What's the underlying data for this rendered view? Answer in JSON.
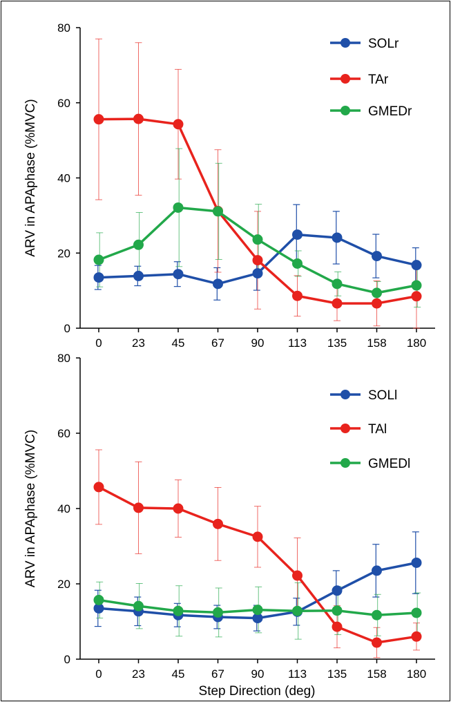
{
  "chart_data": [
    {
      "type": "line",
      "title": "",
      "xlabel": "",
      "ylabel": "ARV in APAphase (%MVC)",
      "ylim": [
        0,
        80
      ],
      "yticks": [
        0,
        20,
        40,
        60,
        80
      ],
      "x": [
        0,
        23,
        45,
        67,
        90,
        113,
        135,
        158,
        180
      ],
      "x_labels": [
        "0",
        "23",
        "45",
        "67",
        "90",
        "113",
        "135",
        "158",
        "180"
      ],
      "legend_position": "top-right",
      "series": [
        {
          "name": "SOLr",
          "color": "#1f4fa8",
          "values": [
            13.5,
            13.9,
            14.4,
            11.8,
            14.6,
            24.9,
            24.1,
            19.2,
            16.8
          ],
          "errors": [
            3.2,
            2.6,
            3.3,
            4.3,
            4.5,
            8.0,
            7.0,
            5.8,
            4.6
          ]
        },
        {
          "name": "TAr",
          "color": "#e8231d",
          "values": [
            55.6,
            55.7,
            54.3,
            31.2,
            18.1,
            8.6,
            6.6,
            6.6,
            8.5
          ],
          "errors": [
            21.4,
            20.3,
            14.6,
            16.3,
            13.0,
            5.4,
            4.6,
            6.0,
            8.5
          ]
        },
        {
          "name": "GMEDr",
          "color": "#22a84a",
          "values": [
            18.2,
            22.2,
            32.1,
            31.1,
            23.6,
            17.2,
            11.8,
            9.4,
            11.4
          ],
          "errors": [
            7.2,
            8.6,
            15.7,
            12.8,
            9.4,
            3.4,
            3.2,
            3.0,
            5.8
          ]
        }
      ]
    },
    {
      "type": "line",
      "title": "",
      "xlabel": "Step Direction (deg)",
      "ylabel": "ARV in APAphase (%MVC)",
      "ylim": [
        0,
        80
      ],
      "yticks": [
        0,
        20,
        40,
        60,
        80
      ],
      "x": [
        0,
        23,
        45,
        67,
        90,
        113,
        135,
        158,
        180
      ],
      "x_labels": [
        "0",
        "23",
        "45",
        "67",
        "90",
        "113",
        "135",
        "158",
        "180"
      ],
      "legend_position": "top-right",
      "series": [
        {
          "name": "SOLl",
          "color": "#1f4fa8",
          "values": [
            13.5,
            12.7,
            11.7,
            11.2,
            10.9,
            12.6,
            18.2,
            23.5,
            25.6
          ],
          "errors": [
            4.8,
            3.8,
            3.1,
            3.1,
            3.4,
            3.6,
            5.3,
            7.0,
            8.2
          ]
        },
        {
          "name": "TAl",
          "color": "#e8231d",
          "values": [
            45.7,
            40.2,
            40.0,
            35.9,
            32.5,
            22.2,
            8.6,
            4.4,
            6.0
          ],
          "errors": [
            9.9,
            12.2,
            7.6,
            9.7,
            8.1,
            10.0,
            5.6,
            4.0,
            3.6
          ]
        },
        {
          "name": "GMEDl",
          "color": "#22a84a",
          "values": [
            15.7,
            14.1,
            12.8,
            12.4,
            13.1,
            12.8,
            12.9,
            11.7,
            12.3
          ],
          "errors": [
            4.8,
            6.0,
            6.7,
            6.5,
            6.1,
            7.5,
            6.4,
            5.5,
            5.3
          ]
        }
      ]
    }
  ]
}
